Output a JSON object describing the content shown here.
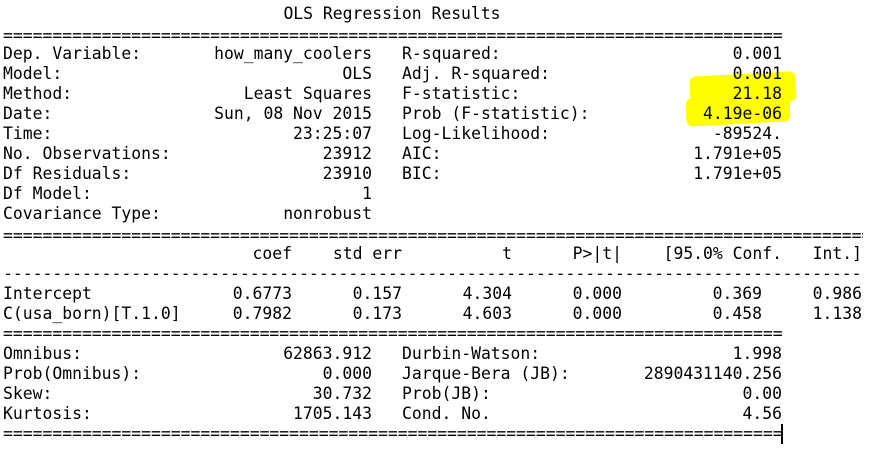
{
  "title": "OLS Regression Results",
  "double_rule": "================================================================================================",
  "double_rule_short": "===============================================================================================",
  "single_rule": "--------------------------------------------------------------------------------------------------------------",
  "top": {
    "left": [
      {
        "label": "Dep. Variable:",
        "value": "how_many_coolers"
      },
      {
        "label": "Model:",
        "value": "OLS"
      },
      {
        "label": "Method:",
        "value": "Least Squares"
      },
      {
        "label": "Date:",
        "value": "Sun, 08 Nov 2015"
      },
      {
        "label": "Time:",
        "value": "23:25:07"
      },
      {
        "label": "No. Observations:",
        "value": "23912"
      },
      {
        "label": "Df Residuals:",
        "value": "23910"
      },
      {
        "label": "Df Model:",
        "value": "1"
      },
      {
        "label": "Covariance Type:",
        "value": "nonrobust"
      }
    ],
    "right": [
      {
        "label": "R-squared:",
        "value": "0.001"
      },
      {
        "label": "Adj. R-squared:",
        "value": "0.001"
      },
      {
        "label": "F-statistic:",
        "value": "21.18"
      },
      {
        "label": "Prob (F-statistic):",
        "value": "4.19e-06"
      },
      {
        "label": "Log-Likelihood:",
        "value": "-89524."
      },
      {
        "label": "AIC:",
        "value": "1.791e+05"
      },
      {
        "label": "BIC:",
        "value": "1.791e+05"
      }
    ]
  },
  "coef_table": {
    "headers": [
      "coef",
      "std err",
      "t",
      "P>|t|",
      "[95.0% Conf.",
      "Int.]"
    ],
    "rows": [
      {
        "name": "Intercept",
        "cells": [
          "0.6773",
          "0.157",
          "4.304",
          "0.000",
          "0.369",
          "0.986"
        ]
      },
      {
        "name": "C(usa_born)[T.1.0]",
        "cells": [
          "0.7982",
          "0.173",
          "4.603",
          "0.000",
          "0.458",
          "1.138"
        ]
      }
    ]
  },
  "bottom": {
    "left": [
      {
        "label": "Omnibus:",
        "value": "62863.912"
      },
      {
        "label": "Prob(Omnibus):",
        "value": "0.000"
      },
      {
        "label": "Skew:",
        "value": "30.732"
      },
      {
        "label": "Kurtosis:",
        "value": "1705.143"
      }
    ],
    "right": [
      {
        "label": "Durbin-Watson:",
        "value": "1.998"
      },
      {
        "label": "Jarque-Bera (JB):",
        "value": "2890431140.256"
      },
      {
        "label": "Prob(JB):",
        "value": "0.00"
      },
      {
        "label": "Cond. No.",
        "value": "4.56"
      }
    ]
  },
  "highlight_color": "#ffff00"
}
